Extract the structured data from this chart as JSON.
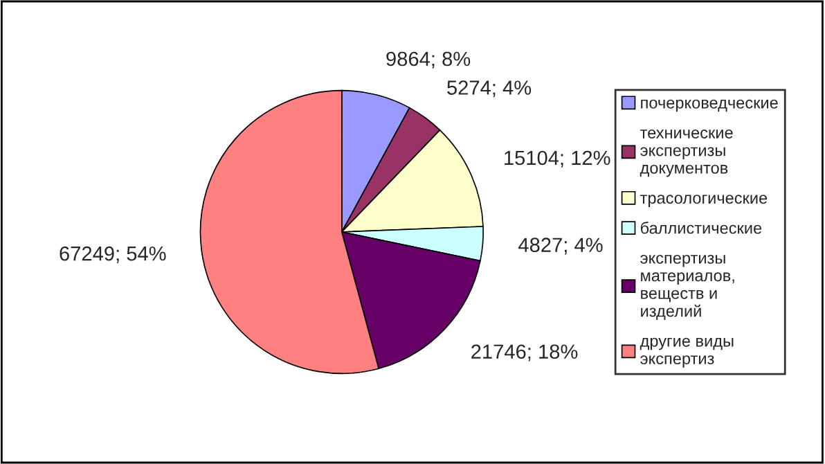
{
  "chart_data": {
    "type": "pie",
    "categories": [
      "почерковедческие",
      "технические\nэкспертизы\nдокументов",
      "трасологические",
      "баллистические",
      "экспертизы\nматериалов,\nвеществ и\nизделий",
      "другие виды\nэкспертиз"
    ],
    "values": [
      9864,
      5274,
      15104,
      4827,
      21746,
      67249
    ],
    "value_labels": [
      "9864; 8%",
      "5274; 4%",
      "15104; 12%",
      "4827; 4%",
      "21746; 18%",
      "67249; 54%"
    ],
    "colors": [
      "#9999ff",
      "#993366",
      "#ffffcc",
      "#ccffff",
      "#660066",
      "#ff8080"
    ],
    "legend": "right"
  }
}
